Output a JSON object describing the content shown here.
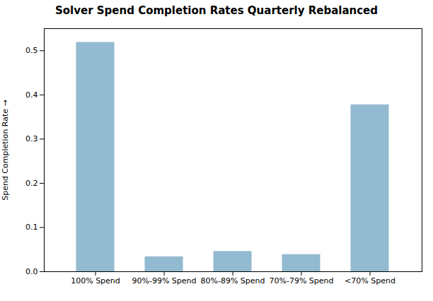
{
  "chart_data": {
    "type": "bar",
    "title": "Solver Spend Completion Rates Quarterly Rebalanced",
    "ylabel": "Spend Completion Rate",
    "categories": [
      "100% Spend",
      "90%-99% Spend",
      "80%-89% Spend",
      "70%-79% Spend",
      "<70% Spend"
    ],
    "values": [
      0.518,
      0.033,
      0.045,
      0.038,
      0.377
    ],
    "color": "#92bad0",
    "ylim": [
      0,
      0.55
    ],
    "yticks": [
      {
        "value": 0.0,
        "label": "0.0"
      },
      0.1,
      0.2,
      0.3,
      0.4,
      0.5
    ],
    "grid": false
  }
}
